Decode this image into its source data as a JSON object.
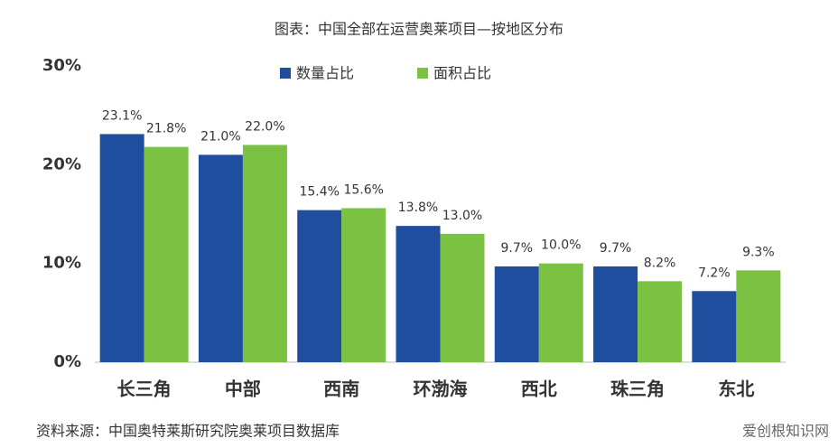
{
  "chart_data": {
    "type": "bar",
    "title": "图表：中国全部在运营奥莱项目—按地区分布",
    "categories": [
      "长三角",
      "中部",
      "西南",
      "环渤海",
      "西北",
      "珠三角",
      "东北"
    ],
    "series": [
      {
        "name": "数量占比",
        "color": "#1f4e9e",
        "values": [
          23.1,
          21.0,
          15.4,
          13.8,
          9.7,
          9.7,
          7.2
        ],
        "value_labels": [
          "23.1%",
          "21.0%",
          "15.4%",
          "13.8%",
          "9.7%",
          "9.7%",
          "7.2%"
        ]
      },
      {
        "name": "面积占比",
        "color": "#7cc242",
        "values": [
          21.8,
          22.0,
          15.6,
          13.0,
          10.0,
          8.2,
          9.3
        ],
        "value_labels": [
          "21.8%",
          "22.0%",
          "15.6%",
          "13.0%",
          "10.0%",
          "8.2%",
          "9.3%"
        ]
      }
    ],
    "ylim": [
      0,
      30
    ],
    "yticks": [
      {
        "value": 0,
        "label": "0%"
      },
      {
        "value": 10,
        "label": "10%"
      },
      {
        "value": 20,
        "label": "20%"
      },
      {
        "value": 30,
        "label": "30%"
      }
    ],
    "grid": false,
    "source": "资料来源：中国奥特莱斯研究院奥莱项目数据库",
    "watermark": "爱创根知识网"
  }
}
